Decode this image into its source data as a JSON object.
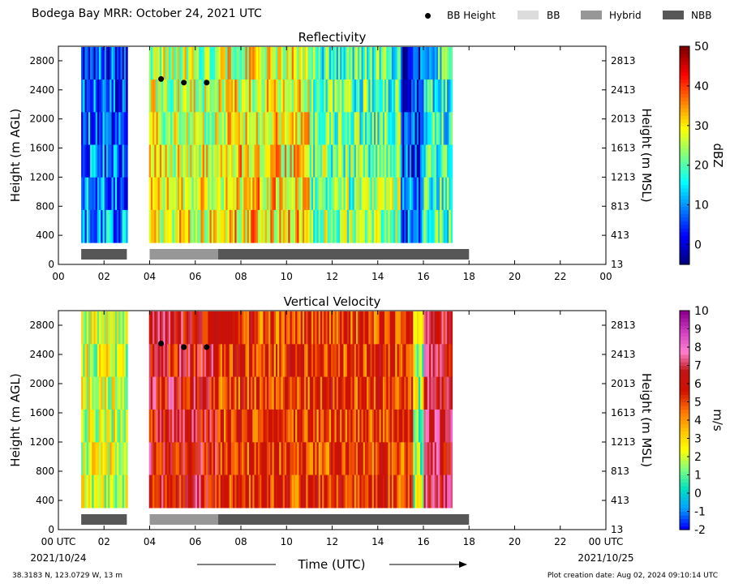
{
  "header": {
    "title": "Bodega Bay MRR:  October 24, 2021 UTC",
    "legend": [
      {
        "label": "BB Height",
        "swatch": "dot",
        "color": "#000000"
      },
      {
        "label": "BB",
        "swatch": "box",
        "color": "#dcdcdc"
      },
      {
        "label": "Hybrid",
        "swatch": "box",
        "color": "#979797"
      },
      {
        "label": "NBB",
        "swatch": "box",
        "color": "#575757"
      }
    ]
  },
  "chart_data": [
    {
      "type": "heatmap",
      "title": "Reflectivity",
      "ylabel": "Height (m AGL)",
      "ylabel_right": "Height (m MSL)",
      "xlim": [
        0,
        24
      ],
      "ylim": [
        0,
        3000
      ],
      "x_ticks": [
        "00",
        "02",
        "04",
        "06",
        "08",
        "10",
        "12",
        "14",
        "16",
        "18",
        "20",
        "22",
        "00"
      ],
      "y_ticks": [
        0,
        400,
        800,
        1200,
        1600,
        2000,
        2400,
        2800
      ],
      "y_ticks_right": [
        "13",
        "413",
        "813",
        "1213",
        "1613",
        "2013",
        "2413",
        "2813"
      ],
      "data_coverage_hours": [
        1.0,
        17.2
      ],
      "data_gap_hours": [
        3.0,
        3.9
      ],
      "colorbar": {
        "label": "dBZ",
        "min": -5,
        "max": 50,
        "ticks": [
          0,
          10,
          20,
          30,
          40,
          50
        ],
        "colors": [
          "#00007f",
          "#0000ff",
          "#007fff",
          "#00ffff",
          "#7fff7f",
          "#ffff00",
          "#ff7f00",
          "#ff0000",
          "#7f0000"
        ]
      },
      "bb_height": [
        {
          "time": 4.5,
          "height": 2550
        },
        {
          "time": 5.5,
          "height": 2500
        },
        {
          "time": 6.5,
          "height": 2500
        }
      ],
      "rain_type": [
        {
          "type": "NBB",
          "start": 1.0,
          "end": 3.0
        },
        {
          "type": "Hybrid",
          "start": 4.0,
          "end": 7.0
        },
        {
          "type": "NBB",
          "start": 7.0,
          "end": 18.0
        }
      ]
    },
    {
      "type": "heatmap",
      "title": "Vertical Velocity",
      "ylabel": "Height (m AGL)",
      "ylabel_right": "Height (m MSL)",
      "xlim": [
        0,
        24
      ],
      "ylim": [
        0,
        3000
      ],
      "x_ticks": [
        "00 UTC",
        "02",
        "04",
        "06",
        "08",
        "10",
        "12",
        "14",
        "16",
        "18",
        "20",
        "22",
        "00 UTC"
      ],
      "date_start": "2021/10/24",
      "date_end": "2021/10/25",
      "xlabel": "Time (UTC)",
      "y_ticks": [
        0,
        400,
        800,
        1200,
        1600,
        2000,
        2400,
        2800
      ],
      "y_ticks_right": [
        "13",
        "413",
        "813",
        "1213",
        "1613",
        "2013",
        "2413",
        "2813"
      ],
      "data_coverage_hours": [
        1.0,
        17.2
      ],
      "data_gap_hours": [
        3.0,
        3.9
      ],
      "colorbar": {
        "label": "m/s",
        "min": -2,
        "max": 10,
        "ticks": [
          -2,
          -1,
          0,
          1,
          2,
          3,
          4,
          5,
          6,
          7,
          8,
          9,
          10
        ],
        "colors": [
          "#0000ff",
          "#00a0ff",
          "#00e0c0",
          "#7fff7f",
          "#ffff00",
          "#ffc000",
          "#ff7000",
          "#d01000",
          "#c01414",
          "#ff80d0",
          "#d040c0",
          "#900090"
        ]
      },
      "bb_height": [
        {
          "time": 4.5,
          "height": 2550
        },
        {
          "time": 5.5,
          "height": 2500
        },
        {
          "time": 6.5,
          "height": 2500
        }
      ],
      "rain_type": [
        {
          "type": "NBB",
          "start": 1.0,
          "end": 3.0
        },
        {
          "type": "Hybrid",
          "start": 4.0,
          "end": 7.0
        },
        {
          "type": "NBB",
          "start": 7.0,
          "end": 18.0
        }
      ]
    }
  ],
  "footer": {
    "location": "38.3183 N, 123.0729 W, 13 m",
    "creation": "Plot creation date: Aug 02, 2024 09:10:14 UTC"
  }
}
